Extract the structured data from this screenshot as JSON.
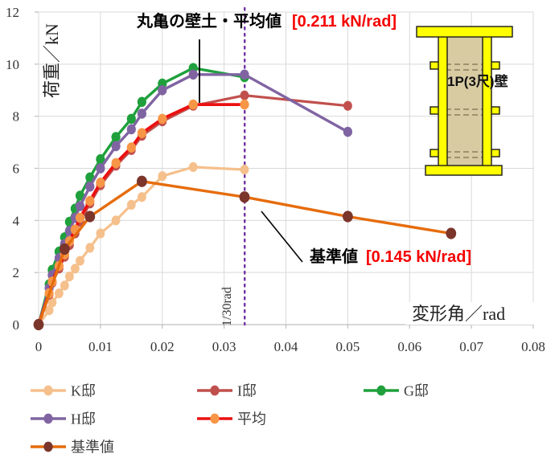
{
  "chart_data": {
    "type": "line",
    "title": "",
    "xlabel": "変形角／rad",
    "ylabel": "荷重／kN",
    "xlim": [
      0,
      0.08
    ],
    "ylim": [
      0,
      12
    ],
    "x_ticks": [
      0,
      0.01,
      0.02,
      0.03,
      0.04,
      0.05,
      0.06,
      0.07,
      0.08
    ],
    "x_tick_labels": [
      "0",
      "0.01",
      "0.02",
      "0.03",
      "0.04",
      "0.05",
      "0.06",
      "0.07",
      "0.08"
    ],
    "y_ticks": [
      0,
      2,
      4,
      6,
      8,
      10,
      12
    ],
    "y_tick_labels": [
      "0",
      "2",
      "4",
      "6",
      "8",
      "10",
      "12"
    ],
    "grid": true,
    "grid_color": "#D9D9D9",
    "axis_color": "#BFBFBF",
    "legend_position": "bottom",
    "reference_line": {
      "x": 0.03333,
      "label": "1/30rad",
      "color": "#7030A0"
    },
    "annotations": {
      "average": {
        "text": "丸亀の壁土・平均値",
        "value": "[0.211 kN/rad]"
      },
      "baseline": {
        "text": "基準値",
        "value": "[0.145 kN/rad]"
      }
    },
    "series": [
      {
        "id": "k-tei",
        "name": "K邸",
        "line_color": "#F5C08C",
        "marker_color": "#F5C08C",
        "line_width": 3.2,
        "marker_size": 5.4,
        "points": [
          [
            0,
            0
          ],
          [
            0.0017,
            0.55
          ],
          [
            0.0022,
            0.85
          ],
          [
            0.0033,
            1.2
          ],
          [
            0.0042,
            1.5
          ],
          [
            0.005,
            1.85
          ],
          [
            0.0059,
            2.15
          ],
          [
            0.0067,
            2.45
          ],
          [
            0.0083,
            2.95
          ],
          [
            0.01,
            3.5
          ],
          [
            0.0125,
            4.0
          ],
          [
            0.015,
            4.6
          ],
          [
            0.0167,
            4.9
          ],
          [
            0.02,
            5.7
          ],
          [
            0.025,
            6.05
          ],
          [
            0.0333,
            5.95
          ]
        ]
      },
      {
        "id": "i-tei",
        "name": "I邸",
        "line_color": "#C0504D",
        "marker_color": "#C0504D",
        "line_width": 3.2,
        "marker_size": 5.4,
        "points": [
          [
            0,
            0
          ],
          [
            0.0017,
            1.15
          ],
          [
            0.0022,
            1.6
          ],
          [
            0.0033,
            2.15
          ],
          [
            0.0042,
            2.6
          ],
          [
            0.005,
            3.05
          ],
          [
            0.0059,
            3.5
          ],
          [
            0.0067,
            3.95
          ],
          [
            0.0083,
            4.65
          ],
          [
            0.01,
            5.35
          ],
          [
            0.0125,
            6.1
          ],
          [
            0.015,
            6.7
          ],
          [
            0.0167,
            7.25
          ],
          [
            0.02,
            7.8
          ],
          [
            0.025,
            8.4
          ],
          [
            0.0333,
            8.8
          ],
          [
            0.05,
            8.4
          ]
        ]
      },
      {
        "id": "g-tei",
        "name": "G邸",
        "line_color": "#1FA03C",
        "marker_color": "#1FA03C",
        "line_width": 3.4,
        "marker_size": 5.6,
        "points": [
          [
            0,
            0
          ],
          [
            0.0017,
            1.55
          ],
          [
            0.0022,
            2.1
          ],
          [
            0.0033,
            2.8
          ],
          [
            0.0042,
            3.35
          ],
          [
            0.005,
            3.95
          ],
          [
            0.0059,
            4.45
          ],
          [
            0.0067,
            4.95
          ],
          [
            0.0083,
            5.65
          ],
          [
            0.01,
            6.35
          ],
          [
            0.0125,
            7.2
          ],
          [
            0.015,
            7.9
          ],
          [
            0.0167,
            8.55
          ],
          [
            0.02,
            9.25
          ],
          [
            0.025,
            9.85
          ],
          [
            0.0333,
            9.5
          ]
        ]
      },
      {
        "id": "h-tei",
        "name": "H邸",
        "line_color": "#8064A2",
        "marker_color": "#8064A2",
        "line_width": 3.4,
        "marker_size": 5.6,
        "points": [
          [
            0,
            0
          ],
          [
            0.0017,
            1.4
          ],
          [
            0.0022,
            1.9
          ],
          [
            0.0033,
            2.55
          ],
          [
            0.0042,
            3.1
          ],
          [
            0.005,
            3.6
          ],
          [
            0.0059,
            4.1
          ],
          [
            0.0067,
            4.55
          ],
          [
            0.0083,
            5.3
          ],
          [
            0.01,
            6.0
          ],
          [
            0.0125,
            6.85
          ],
          [
            0.015,
            7.5
          ],
          [
            0.0167,
            8.1
          ],
          [
            0.02,
            9.0
          ],
          [
            0.025,
            9.6
          ],
          [
            0.0333,
            9.6
          ],
          [
            0.05,
            7.4
          ]
        ]
      },
      {
        "id": "heikin",
        "name": "平均",
        "line_color": "#EB1010",
        "marker_color": "#F79646",
        "line_width": 3.8,
        "marker_size": 5.6,
        "points": [
          [
            0,
            0
          ],
          [
            0.0017,
            1.2
          ],
          [
            0.0022,
            1.65
          ],
          [
            0.0033,
            2.25
          ],
          [
            0.0042,
            2.7
          ],
          [
            0.005,
            3.2
          ],
          [
            0.0059,
            3.65
          ],
          [
            0.0067,
            4.1
          ],
          [
            0.0083,
            4.75
          ],
          [
            0.01,
            5.45
          ],
          [
            0.0125,
            6.2
          ],
          [
            0.015,
            6.8
          ],
          [
            0.0167,
            7.35
          ],
          [
            0.02,
            7.9
          ],
          [
            0.025,
            8.45
          ],
          [
            0.0333,
            8.45
          ]
        ]
      },
      {
        "id": "kijunchi",
        "name": "基準値",
        "line_color": "#E66C0C",
        "marker_color": "#7B352B",
        "line_width": 3.4,
        "marker_size": 6.4,
        "points": [
          [
            0,
            0
          ],
          [
            0.0042,
            2.9
          ],
          [
            0.0083,
            4.15
          ],
          [
            0.0167,
            5.5
          ],
          [
            0.0333,
            4.9
          ],
          [
            0.05,
            4.15
          ],
          [
            0.0667,
            3.5
          ]
        ]
      }
    ]
  },
  "inset": {
    "label": "1P(3尺)壁",
    "frame_color": "#FFFF00",
    "wall_color": "#D8CBA2"
  }
}
